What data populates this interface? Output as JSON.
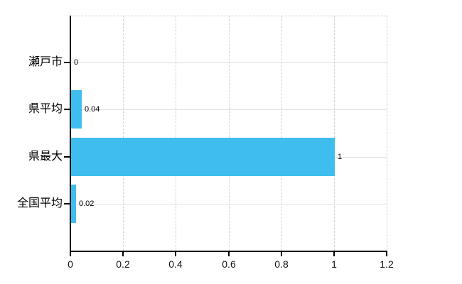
{
  "chart_data": {
    "type": "bar",
    "orientation": "horizontal",
    "title": "",
    "xlabel": "",
    "ylabel": "",
    "categories": [
      "瀬戸市",
      "県平均",
      "県最大",
      "全国平均"
    ],
    "values": [
      0,
      0.04,
      1,
      0.02
    ],
    "value_labels": [
      "0",
      "0.04",
      "1",
      "0.02"
    ],
    "x_ticks": [
      0,
      0.2,
      0.4,
      0.6,
      0.8,
      1,
      1.2
    ],
    "x_tick_labels": [
      "0",
      "0.2",
      "0.4",
      "0.6",
      "0.8",
      "1",
      "1.2"
    ],
    "xlim": [
      0,
      1.2
    ],
    "grid": true,
    "legend": "none",
    "bar_color": "#3fbdee",
    "axis_color": "#000000",
    "hgrid_color": "#dce3dc",
    "vgrid_color": "#d2d2d2"
  }
}
